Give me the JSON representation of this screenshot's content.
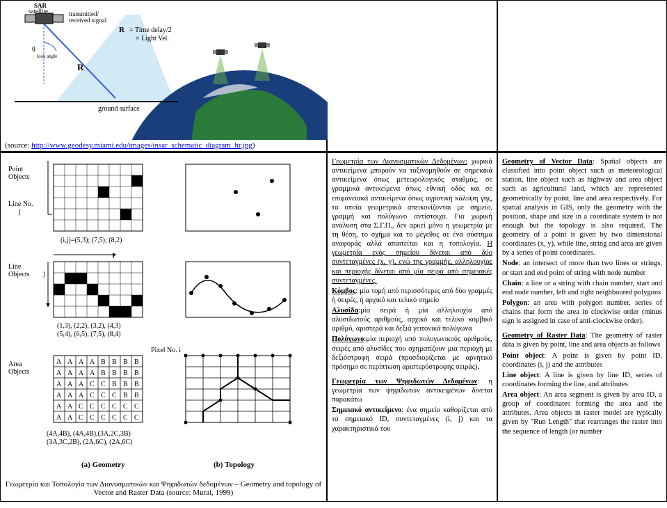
{
  "top": {
    "source_prefix": "(source: ",
    "source_url": "http://www.geodesy.miami.edu/images/insar_schematic_diagram_hr.jpg",
    "source_suffix": ")",
    "sar_labels": {
      "satellite": "SAR\nsatellite",
      "transmitted": "transmitted/\nreceived signal",
      "r_formula": "R = Time delay/2\n× Light Vel.",
      "theta": "θ",
      "look_angle": "look angle",
      "r_letter": "R",
      "ground": "ground surface"
    },
    "colors": {
      "earth_blue": "#1a3d7c",
      "earth_green": "#2a7a3a",
      "earth_white": "#f0f0f0",
      "beam": "#8ec9e8",
      "sat_beam": "#6ab04c",
      "line": "#3a5fcd"
    }
  },
  "left": {
    "caption": "Γεωμετρία και Τοπολογία των Διανυσματικών και Ψηφιδωτών δεδομένων – Geometry and topology of Vector and Raster Data (source: Murai, 1999)",
    "labels": {
      "point_objects": "Point\nObjects",
      "line_no": "Line No.\nj",
      "point_coords": "(i,j)=(5,3); (7,5); (8,2)",
      "line_objects": "Line\nObjects",
      "i_label": "i",
      "j_label": "j",
      "line_coords": "(1,3), (2,2), (3,2), (4,3)\n(5,4), (6,5), (7,5), (8,4)",
      "area_objects": "Area\nObjects",
      "area_codes": "(4A,4B), (4A,4B),(3A,2C,3B)\n(3A,3C,2B), (2A,6C), (2A,6C)",
      "pixel_n": "Pixel No. i",
      "geom_label": "(a) Geometry",
      "topo_label": "(b) Topology"
    },
    "area_grid": [
      [
        "A",
        "A",
        "A",
        "A",
        "B",
        "B",
        "B",
        "B"
      ],
      [
        "A",
        "A",
        "A",
        "A",
        "B",
        "B",
        "B",
        "B"
      ],
      [
        "A",
        "A",
        "A",
        "C",
        "C",
        "B",
        "B",
        "B"
      ],
      [
        "A",
        "A",
        "A",
        "C",
        "C",
        "C",
        "B",
        "B"
      ],
      [
        "A",
        "A",
        "C",
        "C",
        "C",
        "C",
        "C",
        "C"
      ],
      [
        "A",
        "A",
        "C",
        "C",
        "C",
        "C",
        "C",
        "C"
      ]
    ]
  },
  "mid": {
    "title": "Γεωμετρία των Διανυσματικών Δεδομένων:",
    "p1": " χωρικά αντικείμενα μπορούν να ταξινομηθούν σε σημειακά αντικείμενα όπως μετεωρολογικός σταθμός, σε γραμμικά αντικείμενα όπως εθνική οδός και σε επιφανειακά αντικείμενα όπως αγροτική κάλυψη γης, τα οποία γεωμετρικά απεικονίζονται με σημείο, γραμμή και πολύγωνο αντίστοιχα. Για χωρική ανάλυση στα Σ.Γ.Π., δεν αρκεί μόνο η γεωμετρία με τη θέση, το σχήμα και το μέγεθος σε ένα σύστημα αναφοράς αλλά απαιτείται και η τοπολογία. ",
    "p1b": "Η γεωμετρία ενός σημείου δίνεται από δύο συντεταγμένες (x, y), ενώ της γραμμής, αλληλουχίας και περιοχής δίνεται από μία σειρά από σημειακές συντεταγμένες.",
    "kombos_label": "Κόμβος",
    "kombos": ": μία τομή από περισσότερες από δύο γραμμές ή σειρές, ή αρχικό και τελικό σημείο",
    "alysida_label": "Αλυσίδα",
    "alysida": ":μία σειρά ή μία αλληλουχία από αλυσιδωτούς αριθμούς, αρχικό και τελικό κομβικό αριθμό, αριστερά και δεξιά γειτονικά πολύγωνα",
    "polygono_label": "Πολύγωνο",
    "polygono": ":μία περιοχή από πολυγωνικούς αριθμούς, σειρές από αλυσίδες που σχηματίζουν μια περιοχή με δεξιόστροφη σειρά (προσδιορίζεται με αρνητικό πρόσημο σε περίπτωση αριστερόστροφης σειράς).",
    "raster_title": "Γεωμετρία των Ψηφιδωτών Δεδομένων",
    "raster_p": ": η γεωμετρία των ψηφιδωτών αντικειμένων δίνεται παρακάτω",
    "sim_label": "Σημειακό αντικείμενο",
    "sim": ": ένα σημείο καθορίζεται από το σημειακό ID, συντεταγμένες (i, j) και τα χαρακτηριστικά του"
  },
  "right": {
    "title": "Geometry of Vector Data",
    "p1": ": Spatial objects are classified into point object such as meteorological station, line object such as highway and area object such as agricultural land, which are represented geometrically by point, line and area respectively. For spatial analysis in GIS, only the geometry with the position, shape and size in a coordinate system is not enough but the topology is also required. The geometry of a point is given by two dimensional coordinates (x, y), while line, string and area are given by a series of point coordinates.",
    "node_label": "Node",
    "node": ": an intersect of more than two lines or strings, or start and end point of string with node number",
    "chain_label": "Chain",
    "chain": ": a line or a string with chain number, start and end node number, left and right neighboured polygons",
    "polygon_label": "Polygon",
    "polygon": ": an area with polygon number, series of chains that form the area in clockwise order (minus sign is assigned in case of anti-clockwise order).",
    "raster_title": "Geometry of Raster Data",
    "raster_p": ": The geometry of raster data is given by point, line and area objects as follows",
    "pobj_label": "Point object",
    "pobj": ": A point is given by point ID, coordinates (i, j) and the attributes",
    "lobj_label": "Line object",
    "lobj": ": A line is given by line ID, series of coordinates forming the line, and attributes",
    "aobj_label": "Area object",
    "aobj": ": An area segment is given by area ID, a group of coordinates forming the area and the attributes. Area objects in raster model are typically given by \"Run Length\" that rearranges the raster into the sequence of length (or number"
  }
}
